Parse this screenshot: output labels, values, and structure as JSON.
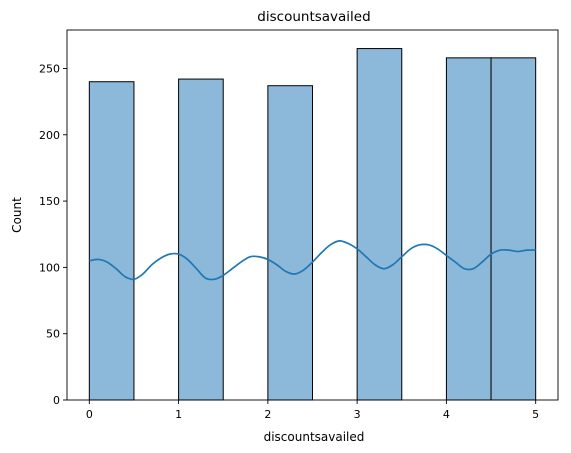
{
  "chart_data": {
    "type": "bar",
    "title": "discountsavailed",
    "xlabel": "discountsavailed",
    "ylabel": "Count",
    "xlim": [
      -0.25,
      5.25
    ],
    "ylim": [
      0,
      279
    ],
    "xticks": [
      0,
      1,
      2,
      3,
      4,
      5
    ],
    "yticks": [
      0,
      50,
      100,
      150,
      200,
      250
    ],
    "bars": [
      {
        "x0": 0.0,
        "x1": 0.5,
        "count": 240
      },
      {
        "x0": 1.0,
        "x1": 1.5,
        "count": 242
      },
      {
        "x0": 2.0,
        "x1": 2.5,
        "count": 237
      },
      {
        "x0": 3.0,
        "x1": 3.5,
        "count": 265
      },
      {
        "x0": 4.0,
        "x1": 4.5,
        "count": 258
      },
      {
        "x0": 4.5,
        "x1": 5.0,
        "count": 258
      }
    ],
    "kde": {
      "x": [
        0.0,
        0.1,
        0.2,
        0.3,
        0.4,
        0.5,
        0.6,
        0.7,
        0.8,
        0.9,
        1.0,
        1.1,
        1.2,
        1.3,
        1.4,
        1.5,
        1.6,
        1.7,
        1.8,
        1.9,
        2.0,
        2.1,
        2.2,
        2.3,
        2.4,
        2.5,
        2.6,
        2.7,
        2.8,
        2.9,
        3.0,
        3.1,
        3.2,
        3.3,
        3.4,
        3.5,
        3.6,
        3.7,
        3.8,
        3.9,
        4.0,
        4.1,
        4.2,
        4.3,
        4.4,
        4.5,
        4.6,
        4.7,
        4.8,
        4.9,
        5.0
      ],
      "y": [
        105,
        106,
        104,
        99,
        93,
        91,
        95,
        102,
        107,
        110,
        110,
        106,
        99,
        92,
        91,
        94,
        99,
        104,
        108,
        108,
        106,
        102,
        97,
        95,
        98,
        104,
        111,
        117,
        120,
        118,
        114,
        108,
        102,
        99,
        102,
        108,
        114,
        117,
        117,
        114,
        109,
        104,
        99,
        99,
        104,
        110,
        113,
        113,
        112,
        113,
        113
      ],
      "color": "#1f77b4"
    },
    "bar_color": "#8cb8d9",
    "bar_edge_color": "#000000"
  }
}
